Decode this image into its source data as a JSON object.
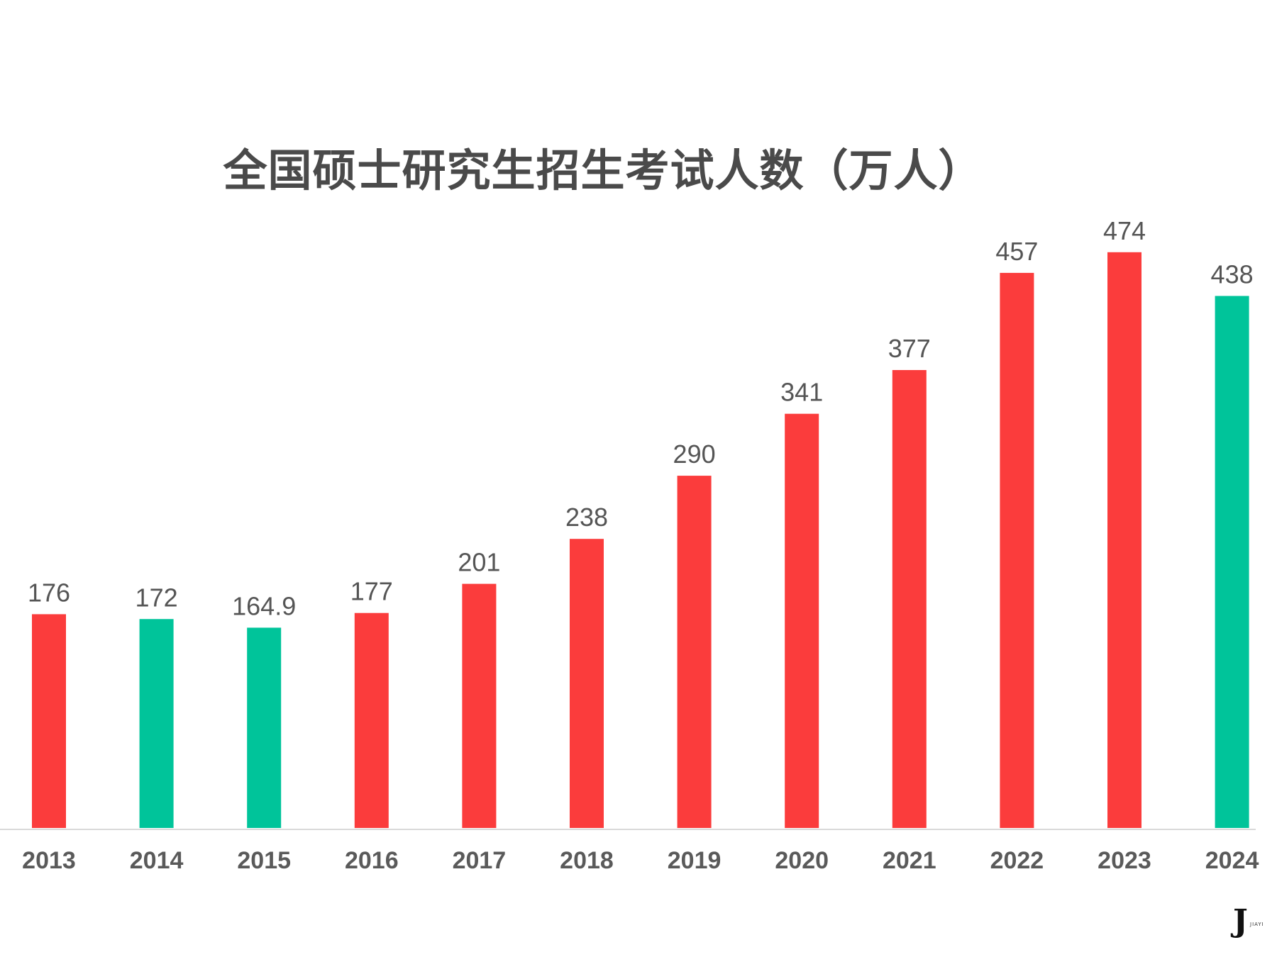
{
  "chart_data": {
    "type": "bar",
    "title": "全国硕士研究生招生考试人数（万人）",
    "categories": [
      "2013",
      "2014",
      "2015",
      "2016",
      "2017",
      "2018",
      "2019",
      "2020",
      "2021",
      "2022",
      "2023",
      "2024"
    ],
    "values": [
      176,
      172,
      164.9,
      177,
      201,
      238,
      290,
      341,
      377,
      457,
      474,
      438
    ],
    "value_labels": [
      "176",
      "172",
      "164.9",
      "177",
      "201",
      "238",
      "290",
      "341",
      "377",
      "457",
      "474",
      "438"
    ],
    "bar_status": [
      "increase",
      "decrease",
      "decrease",
      "increase",
      "increase",
      "increase",
      "increase",
      "increase",
      "increase",
      "increase",
      "increase",
      "decrease"
    ],
    "colors": {
      "increase": "#fb3c3c",
      "decrease": "#00c49a",
      "axis": "#d9d9d9"
    },
    "ylim": [
      0,
      520
    ],
    "grid": false,
    "legend": "none"
  },
  "logo": {
    "mark": "J",
    "text": "JIAYI"
  }
}
